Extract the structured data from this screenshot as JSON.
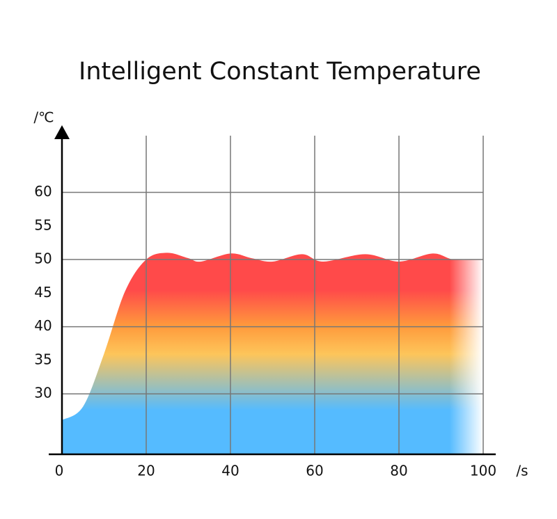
{
  "chart_data": {
    "type": "area",
    "title": "Intelligent Constant Temperature",
    "y_axis_label": "/℃",
    "x_axis_label": "/s",
    "x": [
      0,
      5,
      10,
      15,
      20,
      25,
      30,
      33,
      40,
      45,
      50,
      57,
      62,
      72,
      80,
      88,
      93,
      100
    ],
    "series": [
      {
        "values": [
          26.1,
          28.1,
          36,
          45.3,
          50,
          51,
          50.2,
          49.7,
          50.9,
          50.2,
          49.7,
          50.8,
          49.7,
          50.8,
          49.7,
          50.9,
          50,
          50
        ]
      }
    ],
    "xlim": [
      0,
      100
    ],
    "xticks": [
      0,
      20,
      40,
      60,
      80,
      100
    ],
    "ylim": [
      21,
      70
    ],
    "yticks": [
      30,
      35,
      40,
      45,
      50,
      55,
      60
    ],
    "ygridlines": [
      30,
      40,
      50,
      60
    ],
    "grid": true,
    "colors": [
      "#55bbff",
      "#fdc55a",
      "#ff9a3c",
      "#ff4a4a"
    ]
  }
}
